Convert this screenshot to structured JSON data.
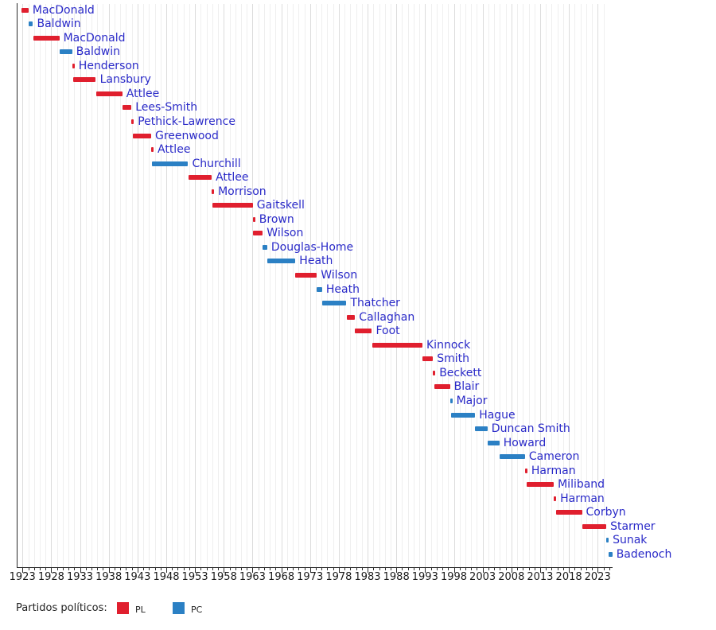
{
  "chart_data": {
    "type": "timeline",
    "title": "",
    "description": "Gantt-style timeline of UK Leaders of the Opposition by party; start/end are decimal years",
    "x_axis": {
      "domain": [
        1922.0,
        2025.6
      ],
      "tick_years": [
        1923,
        1928,
        1933,
        1938,
        1943,
        1948,
        1953,
        1958,
        1963,
        1968,
        1973,
        1978,
        1983,
        1988,
        1993,
        1998,
        2003,
        2008,
        2013,
        2018,
        2023
      ],
      "minor_tick_interval_years": 1,
      "grid": "vertical yearly gridlines, 5-year lines darker"
    },
    "rows": [
      {
        "label": "MacDonald",
        "party": "PL",
        "start": 1922.89,
        "end": 1924.06
      },
      {
        "label": "Baldwin",
        "party": "PC",
        "start": 1924.06,
        "end": 1924.84
      },
      {
        "label": "MacDonald",
        "party": "PL",
        "start": 1924.84,
        "end": 1929.42
      },
      {
        "label": "Baldwin",
        "party": "PC",
        "start": 1929.42,
        "end": 1931.65
      },
      {
        "label": "Henderson",
        "party": "PL",
        "start": 1931.65,
        "end": 1931.85
      },
      {
        "label": "Lansbury",
        "party": "PL",
        "start": 1931.85,
        "end": 1935.77
      },
      {
        "label": "Attlee",
        "party": "PL",
        "start": 1935.77,
        "end": 1940.37
      },
      {
        "label": "Lees-Smith",
        "party": "PL",
        "start": 1940.37,
        "end": 1941.95
      },
      {
        "label": "Pethick-Lawrence",
        "party": "PL",
        "start": 1941.95,
        "end": 1942.15
      },
      {
        "label": "Greenwood",
        "party": "PL",
        "start": 1942.15,
        "end": 1945.37
      },
      {
        "label": "Attlee",
        "party": "PL",
        "start": 1945.37,
        "end": 1945.55
      },
      {
        "label": "Churchill",
        "party": "PC",
        "start": 1945.55,
        "end": 1951.8
      },
      {
        "label": "Attlee",
        "party": "PL",
        "start": 1951.8,
        "end": 1955.9
      },
      {
        "label": "Morrison",
        "party": "PL",
        "start": 1955.9,
        "end": 1955.96
      },
      {
        "label": "Gaitskell",
        "party": "PL",
        "start": 1955.96,
        "end": 1963.05
      },
      {
        "label": "Brown",
        "party": "PL",
        "start": 1963.05,
        "end": 1963.12
      },
      {
        "label": "Wilson",
        "party": "PL",
        "start": 1963.12,
        "end": 1964.78
      },
      {
        "label": "Douglas-Home",
        "party": "PC",
        "start": 1964.78,
        "end": 1965.55
      },
      {
        "label": "Heath",
        "party": "PC",
        "start": 1965.55,
        "end": 1970.45
      },
      {
        "label": "Wilson",
        "party": "PL",
        "start": 1970.45,
        "end": 1974.17
      },
      {
        "label": "Heath",
        "party": "PC",
        "start": 1974.17,
        "end": 1975.1
      },
      {
        "label": "Thatcher",
        "party": "PC",
        "start": 1975.1,
        "end": 1979.33
      },
      {
        "label": "Callaghan",
        "party": "PL",
        "start": 1979.33,
        "end": 1980.83
      },
      {
        "label": "Foot",
        "party": "PL",
        "start": 1980.83,
        "end": 1983.75
      },
      {
        "label": "Kinnock",
        "party": "PL",
        "start": 1983.75,
        "end": 1992.54
      },
      {
        "label": "Smith",
        "party": "PL",
        "start": 1992.54,
        "end": 1994.37
      },
      {
        "label": "Beckett",
        "party": "PL",
        "start": 1994.37,
        "end": 1994.55
      },
      {
        "label": "Blair",
        "party": "PL",
        "start": 1994.55,
        "end": 1997.33
      },
      {
        "label": "Major",
        "party": "PC",
        "start": 1997.33,
        "end": 1997.45
      },
      {
        "label": "Hague",
        "party": "PC",
        "start": 1997.45,
        "end": 2001.7
      },
      {
        "label": "Duncan Smith",
        "party": "PC",
        "start": 2001.7,
        "end": 2003.85
      },
      {
        "label": "Howard",
        "party": "PC",
        "start": 2003.85,
        "end": 2005.92
      },
      {
        "label": "Cameron",
        "party": "PC",
        "start": 2005.92,
        "end": 2010.37
      },
      {
        "label": "Harman",
        "party": "PL",
        "start": 2010.37,
        "end": 2010.71
      },
      {
        "label": "Miliband",
        "party": "PL",
        "start": 2010.71,
        "end": 2015.37
      },
      {
        "label": "Harman",
        "party": "PL",
        "start": 2015.37,
        "end": 2015.71
      },
      {
        "label": "Corbyn",
        "party": "PL",
        "start": 2015.71,
        "end": 2020.27
      },
      {
        "label": "Starmer",
        "party": "PL",
        "start": 2020.27,
        "end": 2024.5
      },
      {
        "label": "Sunak",
        "party": "PC",
        "start": 2024.5,
        "end": 2024.84
      },
      {
        "label": "Badenoch",
        "party": "PC",
        "start": 2024.84,
        "end": 2025.55
      }
    ],
    "legend_position": "bottom-left"
  },
  "legend": {
    "title": "Partidos políticos:",
    "items": [
      {
        "label": "PL",
        "color": "#e01f2e"
      },
      {
        "label": "PC",
        "color": "#2b80c4"
      }
    ]
  },
  "colors": {
    "pl": "#e01f2e",
    "pc": "#2b80c4",
    "label_text": "#2a2ac8",
    "axis": "#2b2b2b",
    "grid_minor": "#efefef",
    "grid_major": "#dcdcdc"
  }
}
